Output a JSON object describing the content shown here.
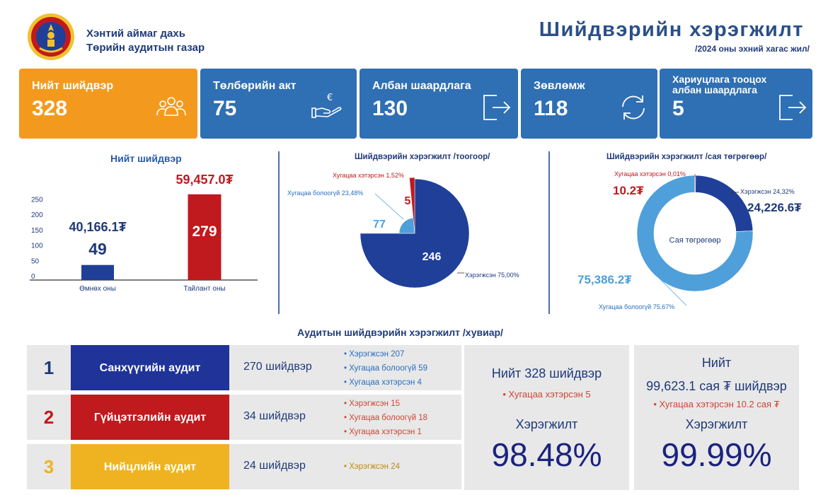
{
  "header": {
    "org_line1": "Хэнтий аймаг дахь",
    "org_line2": "Төрийн аудитын газар",
    "title": "Шийдвэрийн хэрэгжилт",
    "subtitle": "/2024 оны эхний хагас жил/"
  },
  "cards": [
    {
      "label": "Нийт шийдвэр",
      "value": "328",
      "icon": "people-icon"
    },
    {
      "label": "Төлбөрийн акт",
      "value": "75",
      "icon": "euro-hand-icon"
    },
    {
      "label": "Албан шаардлага",
      "value": "130",
      "icon": "export-icon"
    },
    {
      "label": "Зөвлөмж",
      "value": "118",
      "icon": "refresh-icon"
    },
    {
      "label": "Хариуцлага тооцох албан шаардлага",
      "value": "5",
      "icon": "export-icon"
    }
  ],
  "chart_data": [
    {
      "type": "bar",
      "title": "Нийт шийдвэр",
      "categories": [
        "Өмнөх оны",
        "Тайлант оны"
      ],
      "values": [
        49,
        279
      ],
      "amount_labels": [
        "40,166.1₮",
        "59,457.0₮"
      ],
      "value_labels": [
        "49",
        "279"
      ],
      "colors": [
        "#1f3f99",
        "#c0191e"
      ],
      "yticks": [
        0,
        50,
        100,
        150,
        200,
        250
      ],
      "ylim": [
        0,
        290
      ]
    },
    {
      "type": "pie",
      "title": "Шийдвэрийн хэрэгжилт /тоогоор/",
      "slices": [
        {
          "name": "Хэрэгжсэн 75,00%",
          "value": 246,
          "label": "246",
          "color": "#1f3f99"
        },
        {
          "name": "Хугацаа болоогүй 23,48%",
          "value": 77,
          "label": "77",
          "color": "#4f9fda"
        },
        {
          "name": "Хугацаа хэтэрсэн 1,52%",
          "value": 5,
          "label": "5",
          "color": "#c0191e"
        }
      ]
    },
    {
      "type": "pie",
      "title": "Шийдвэрийн хэрэгжилт /сая төгрөгөөр/",
      "center_label": "Сая төгрөгөөр",
      "slices": [
        {
          "name": "Хэрэгжсэн 24,32%",
          "value": 24226.6,
          "label": "24,226.6₮",
          "color": "#1f3f99"
        },
        {
          "name": "Хугацаа болоогүй 75,67%",
          "value": 75386.2,
          "label": "75,386.2₮",
          "color": "#4f9fda"
        },
        {
          "name": "Хугацаа хэтэрсэн 0,01%",
          "value": 10.2,
          "label": "10.2₮",
          "color": "#c0191e"
        }
      ]
    }
  ],
  "audit": {
    "title": "Аудитын шийдвэрийн хэрэгжилт /хувиар/",
    "rows": [
      {
        "num": "1",
        "name": "Санхүүгийн аудит",
        "count": "270 шийдвэр",
        "details": [
          "• Хэрэгжсэн  207",
          "• Хугацаа болоогүй  59",
          "• Хугацаа хэтэрсэн  4"
        ],
        "color": "#1f3399",
        "num_color": "#1f3a7a",
        "det_color": "#2a6fc0"
      },
      {
        "num": "2",
        "name": "Гүйцэтгэлийн аудит",
        "count": "34 шийдвэр",
        "details": [
          "• Хэрэгжсэн  15",
          "• Хугацаа болоогүй  18",
          "• Хугацаа хэтэрсэн  1"
        ],
        "color": "#c0191e",
        "num_color": "#c0191e",
        "det_color": "#d04535"
      },
      {
        "num": "3",
        "name": "Нийцлийн аудит",
        "count": "24 шийдвэр",
        "details": [
          "• Хэрэгжсэн  24"
        ],
        "color": "#efb321",
        "num_color": "#efb321",
        "det_color": "#c08a10"
      }
    ]
  },
  "summary_count": {
    "title": "Нийт 328 шийдвэр",
    "overdue": "• Хугацаа хэтэрсэн  5",
    "label": "Хэрэгжилт",
    "percent": "98.48%"
  },
  "summary_amount": {
    "title1": "Нийт",
    "title2": "99,623.1 сая ₮ шийдвэр",
    "overdue": "• Хугацаа хэтэрсэн  10.2 сая ₮",
    "label": "Хэрэгжилт",
    "percent": "99.99%"
  }
}
